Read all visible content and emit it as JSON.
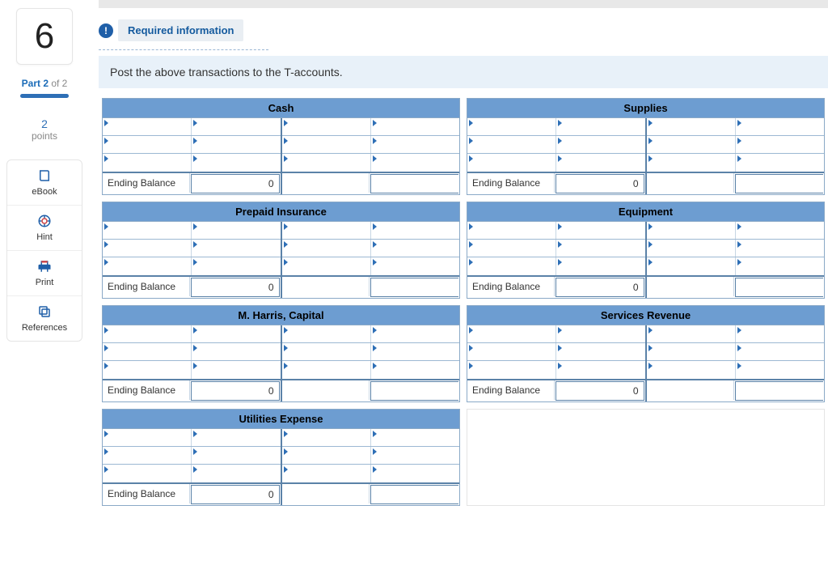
{
  "sidebar": {
    "question_number": "6",
    "part_label_a": "Part 2",
    "part_label_b": "of 2",
    "points_value": "2",
    "points_label": "points",
    "tools": [
      {
        "name": "ebook",
        "label": "eBook"
      },
      {
        "name": "hint",
        "label": "Hint"
      },
      {
        "name": "print",
        "label": "Print"
      },
      {
        "name": "references",
        "label": "References"
      }
    ]
  },
  "header": {
    "required_label": "Required information",
    "instruction": "Post the above transactions to the T-accounts."
  },
  "accounts": [
    {
      "title": "Cash",
      "ending_label": "Ending Balance",
      "ending_value": "0",
      "rows": 3
    },
    {
      "title": "Supplies",
      "ending_label": "Ending Balance",
      "ending_value": "0",
      "rows": 3
    },
    {
      "title": "Prepaid Insurance",
      "ending_label": "Ending Balance",
      "ending_value": "0",
      "rows": 3
    },
    {
      "title": "Equipment",
      "ending_label": "Ending Balance",
      "ending_value": "0",
      "rows": 3
    },
    {
      "title": "M. Harris, Capital",
      "ending_label": "Ending Balance",
      "ending_value": "0",
      "rows": 3
    },
    {
      "title": "Services Revenue",
      "ending_label": "Ending Balance",
      "ending_value": "0",
      "rows": 3
    },
    {
      "title": "Utilities Expense",
      "ending_label": "Ending Balance",
      "ending_value": "0",
      "rows": 3
    }
  ],
  "colors": {
    "header_bg": "#6d9dd1",
    "border": "#8aa9c7",
    "accent": "#2e6fb6",
    "instruction_bg": "#e8f1f9"
  }
}
